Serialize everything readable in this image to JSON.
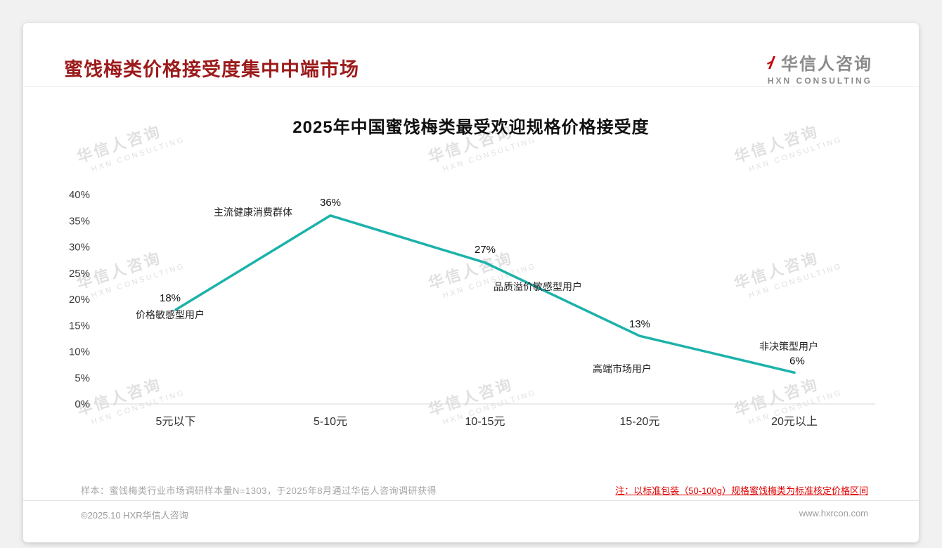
{
  "page": {
    "header_title": "蜜饯梅类价格接受度集中中端市场",
    "logo": {
      "name": "华信人咨询",
      "sub": "HXN CONSULTING"
    },
    "footer": {
      "sample_note": "样本：蜜饯梅类行业市场调研样本量N=1303，于2025年8月通过华信人咨询调研获得",
      "price_note": "注：以标准包装（50-100g）规格蜜饯梅类为标准核定价格区间",
      "copyright": "©2025.10 HXR华信人咨询",
      "website": "www.hxrcon.com"
    }
  },
  "watermark": {
    "line1": "华信人咨询",
    "line2": "HXN CONSULTING"
  },
  "chart_data": {
    "type": "line",
    "title": "2025年中国蜜饯梅类最受欢迎规格价格接受度",
    "categories": [
      "5元以下",
      "5-10元",
      "10-15元",
      "15-20元",
      "20元以上"
    ],
    "values": [
      18,
      36,
      27,
      13,
      6
    ],
    "data_labels": [
      "18%",
      "36%",
      "27%",
      "13%",
      "6%"
    ],
    "annotations": [
      "价格敏感型用户",
      "主流健康消费群体",
      "品质溢价敏感型用户",
      "高端市场用户",
      "非决策型用户"
    ],
    "xlabel": "",
    "ylabel": "",
    "ylim": [
      0,
      40
    ],
    "ytick_step": 5,
    "ytick_labels": [
      "0%",
      "5%",
      "10%",
      "15%",
      "20%",
      "25%",
      "30%",
      "35%",
      "40%"
    ],
    "line_color": "#1cb2aa",
    "grid": false,
    "legend": false
  }
}
